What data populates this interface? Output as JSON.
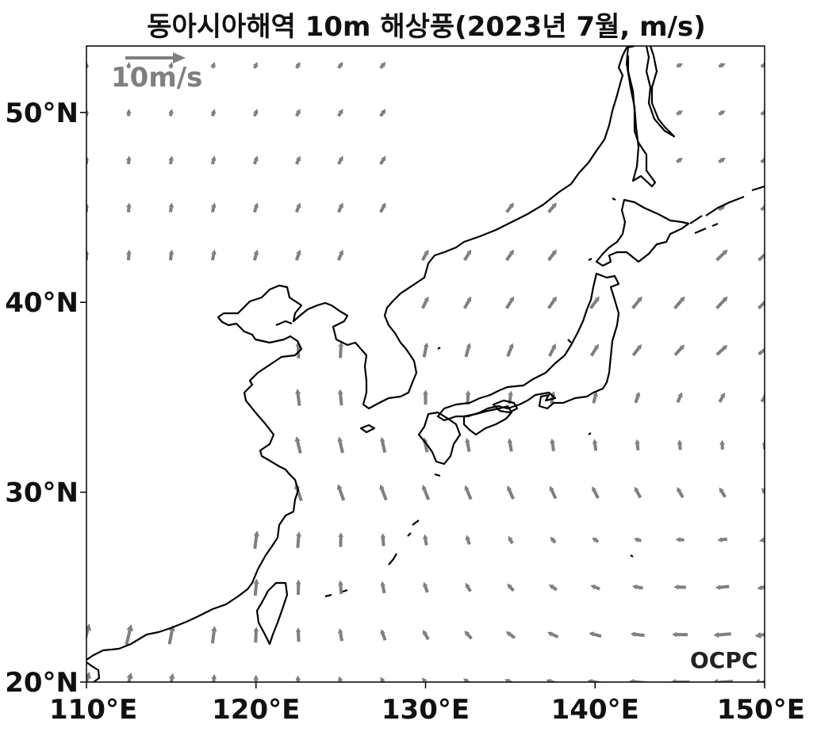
{
  "title": "동아시아해역 10m 해상풍(2023년 7월, m/s)",
  "chart_data": {
    "type": "map-vector-field",
    "title": "동아시아해역 10m 해상풍(2023년 7월, m/s)",
    "projection": "PlateCarree",
    "lon_range": [
      110,
      150
    ],
    "lat_range": [
      20,
      53.5
    ],
    "x_ticks": [
      "110°E",
      "120°E",
      "130°E",
      "140°E",
      "150°E"
    ],
    "y_ticks": [
      "20°N",
      "30°N",
      "40°N",
      "50°N"
    ],
    "reference_vector": {
      "label": "10m/s",
      "speed": 10
    },
    "vector_color": "#7f7f7f",
    "coastline_color": "#000000",
    "grid_spacing_deg": 2.5
  },
  "logo": "OCPC"
}
